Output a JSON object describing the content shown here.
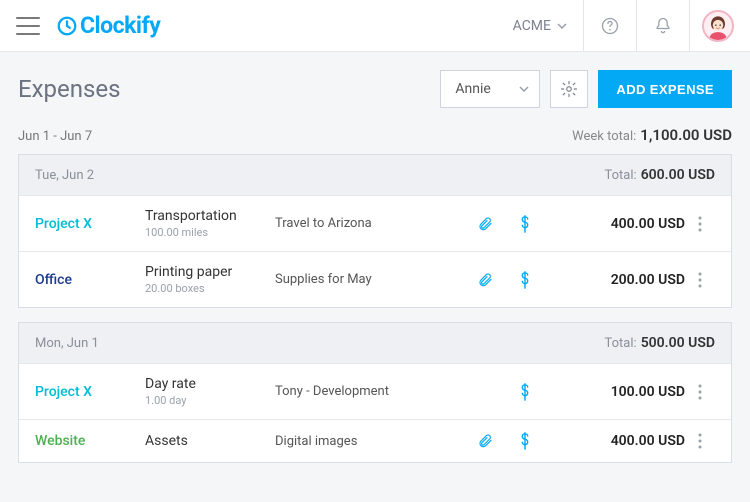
{
  "brand": {
    "name": "Clockify"
  },
  "workspace": {
    "name": "ACME"
  },
  "page": {
    "title": "Expenses",
    "user_filter": "Annie",
    "add_button": "ADD EXPENSE",
    "date_range": "Jun 1 - Jun 7",
    "week_total_label": "Week total:",
    "week_total_value": "1,100.00 USD"
  },
  "project_colors": {
    "Project X": "#00bcd4",
    "Office": "#1a3b8b",
    "Website": "#4caf50"
  },
  "groups": [
    {
      "date": "Tue, Jun 2",
      "total_label": "Total:",
      "total_value": "600.00 USD",
      "rows": [
        {
          "project": "Project X",
          "project_class": "proj-teal",
          "item": "Transportation",
          "qty": "100.00 miles",
          "desc": "Travel to Arizona",
          "has_attachment": true,
          "billable": true,
          "amount": "400.00 USD"
        },
        {
          "project": "Office",
          "project_class": "proj-navy",
          "item": "Printing paper",
          "qty": "20.00 boxes",
          "desc": "Supplies for May",
          "has_attachment": true,
          "billable": true,
          "amount": "200.00 USD"
        }
      ]
    },
    {
      "date": "Mon, Jun 1",
      "total_label": "Total:",
      "total_value": "500.00 USD",
      "rows": [
        {
          "project": "Project X",
          "project_class": "proj-teal",
          "item": "Day rate",
          "qty": "1.00 day",
          "desc": "Tony - Development",
          "has_attachment": false,
          "billable": true,
          "amount": "100.00 USD"
        },
        {
          "project": "Website",
          "project_class": "proj-green",
          "item": "Assets",
          "qty": "",
          "desc": "Digital images",
          "has_attachment": true,
          "billable": true,
          "amount": "400.00 USD"
        }
      ]
    }
  ]
}
